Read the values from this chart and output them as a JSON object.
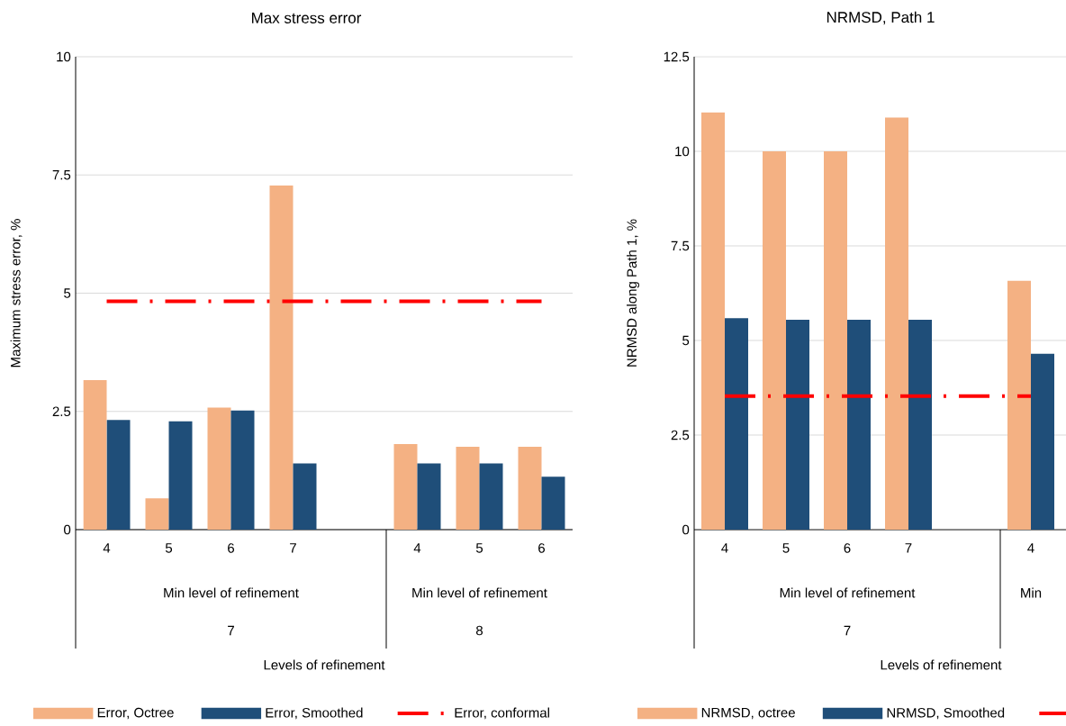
{
  "chart_data": [
    {
      "type": "bar",
      "title": "Max stress error",
      "xlabel": "Levels of refinement",
      "ylabel": "Maximum stress error, %",
      "categories": [
        "4",
        "5",
        "6",
        "7",
        null,
        "4",
        "5",
        "6"
      ],
      "series": [
        {
          "name": "Error, Octree",
          "color": "#f4b183",
          "values": [
            3.16,
            0.66,
            2.58,
            7.28,
            null,
            1.81,
            1.75,
            1.75
          ]
        },
        {
          "name": "Error, Smoothed",
          "color": "#1f4e79",
          "values": [
            2.32,
            2.29,
            2.52,
            1.4,
            null,
            1.4,
            1.4,
            1.12
          ]
        },
        {
          "name": "Error, conformal",
          "color": "#ff0000",
          "type": "line",
          "line_style": "dashed",
          "values": [
            4.83,
            4.83,
            4.83,
            4.83,
            4.83,
            4.83,
            4.83,
            4.83
          ]
        }
      ],
      "ylim": [
        0,
        10
      ],
      "yticks": [
        0,
        2.5,
        5,
        7.5,
        10
      ],
      "grid": "y",
      "legend": "bottom",
      "annotations": [
        "Min level of refinement",
        "7",
        "Min level of refinement",
        "8"
      ]
    },
    {
      "type": "bar",
      "title": "NRMSD, Path 1",
      "xlabel": "Levels of refinement",
      "ylabel": "NRMSD along Path 1, %",
      "categories": [
        "4",
        "5",
        "6",
        "7",
        null,
        "4"
      ],
      "series": [
        {
          "name": "NRMSD, octree",
          "color": "#f4b183",
          "values": [
            11.03,
            10.0,
            10.0,
            10.89,
            null,
            6.58
          ]
        },
        {
          "name": "NRMSD, Smoothed",
          "color": "#1f4e79",
          "values": [
            5.59,
            5.55,
            5.55,
            5.55,
            null,
            4.65
          ]
        },
        {
          "color": "#ff0000",
          "type": "line",
          "line_style": "dashed",
          "values": [
            3.53,
            3.53,
            3.53,
            3.53,
            3.53,
            3.53
          ]
        }
      ],
      "ylim": [
        0,
        12.5
      ],
      "yticks": [
        0,
        2.5,
        5,
        7.5,
        10,
        12.5
      ],
      "grid": "y",
      "legend": "bottom",
      "annotations": [
        "Min level of refinement",
        "7",
        "Min"
      ]
    }
  ]
}
